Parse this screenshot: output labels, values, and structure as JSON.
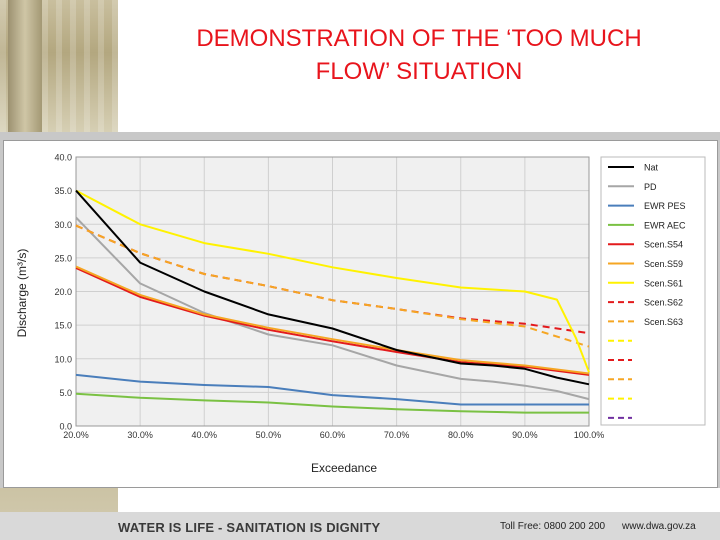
{
  "slide": {
    "title_line1": "DEMONSTRATION OF THE ‘TOO MUCH",
    "title_line2": "FLOW’ SITUATION"
  },
  "footer": {
    "slogan": "WATER IS LIFE - SANITATION IS DIGNITY",
    "toll_free": "Toll Free: 0800 200 200",
    "website": "www.dwa.gov.za"
  },
  "chart_data": {
    "type": "line",
    "xlabel": "Exceedance",
    "ylabel": "Discharge (m³/s)",
    "xlim": [
      20,
      100
    ],
    "ylim": [
      0,
      40
    ],
    "x_ticks": [
      "20.0%",
      "30.0%",
      "40.0%",
      "50.0%",
      "60.0%",
      "70.0%",
      "80.0%",
      "90.0%",
      "100.0%"
    ],
    "y_ticks": [
      "0.0",
      "5.0",
      "10.0",
      "15.0",
      "20.0",
      "25.0",
      "30.0",
      "35.0",
      "40.0"
    ],
    "grid": true,
    "legend_position": "right",
    "series": [
      {
        "name": "Nat",
        "color": "#000000",
        "dash": false,
        "x": [
          20,
          30,
          40,
          50,
          60,
          70,
          80,
          85,
          90,
          95,
          100
        ],
        "y": [
          35.0,
          24.3,
          20.0,
          16.6,
          14.5,
          11.3,
          9.3,
          9.0,
          8.5,
          7.2,
          6.2
        ]
      },
      {
        "name": "PD",
        "color": "#a6a6a6",
        "dash": false,
        "x": [
          20,
          30,
          40,
          50,
          60,
          70,
          80,
          85,
          90,
          95,
          100
        ],
        "y": [
          31.0,
          21.2,
          16.8,
          13.6,
          12.0,
          9.0,
          7.0,
          6.6,
          6.0,
          5.2,
          4.0
        ]
      },
      {
        "name": "EWR PES",
        "color": "#4a7ebb",
        "dash": false,
        "x": [
          20,
          30,
          40,
          50,
          60,
          70,
          80,
          90,
          100
        ],
        "y": [
          7.6,
          6.6,
          6.1,
          5.8,
          4.6,
          4.0,
          3.2,
          3.2,
          3.2
        ]
      },
      {
        "name": "EWR AEC",
        "color": "#7ac143",
        "dash": false,
        "x": [
          20,
          30,
          40,
          50,
          60,
          70,
          80,
          90,
          100
        ],
        "y": [
          4.8,
          4.2,
          3.8,
          3.5,
          2.9,
          2.5,
          2.2,
          2.0,
          2.0
        ]
      },
      {
        "name": "Scen.S54",
        "color": "#e31a1c",
        "dash": false,
        "x": [
          20,
          30,
          40,
          50,
          60,
          70,
          80,
          90,
          100
        ],
        "y": [
          23.5,
          19.2,
          16.4,
          14.3,
          12.6,
          11.0,
          9.5,
          8.8,
          7.6
        ]
      },
      {
        "name": "Scen.S59",
        "color": "#f5a623",
        "dash": false,
        "x": [
          20,
          30,
          40,
          50,
          60,
          70,
          80,
          90,
          100
        ],
        "y": [
          23.7,
          19.5,
          16.6,
          14.6,
          12.9,
          11.3,
          9.8,
          9.0,
          7.8
        ]
      },
      {
        "name": "Scen.S61",
        "color": "#fff200",
        "dash": false,
        "x": [
          20,
          30,
          40,
          50,
          60,
          70,
          80,
          90,
          95,
          98,
          100
        ],
        "y": [
          35.0,
          30.0,
          27.2,
          25.6,
          23.6,
          22.0,
          20.6,
          20.0,
          18.8,
          13.0,
          8.0
        ]
      },
      {
        "name": "Scen.S62",
        "color": "#e31a1c",
        "dash": true,
        "x": [
          20,
          30,
          40,
          50,
          60,
          70,
          80,
          90,
          100
        ],
        "y": [
          29.8,
          25.7,
          22.6,
          20.8,
          18.7,
          17.4,
          16.0,
          15.2,
          13.8
        ]
      },
      {
        "name": "Scen.S63",
        "color": "#f5a623",
        "dash": true,
        "x": [
          20,
          30,
          40,
          50,
          60,
          70,
          80,
          90,
          100
        ],
        "y": [
          29.8,
          25.7,
          22.6,
          20.8,
          18.7,
          17.4,
          15.9,
          14.8,
          11.8
        ]
      }
    ],
    "legend_extra": [
      {
        "color": "#fff200"
      },
      {
        "color": "#e31a1c"
      },
      {
        "color": "#f5a623"
      },
      {
        "color": "#fff200"
      },
      {
        "color": "#7030a0"
      }
    ]
  }
}
